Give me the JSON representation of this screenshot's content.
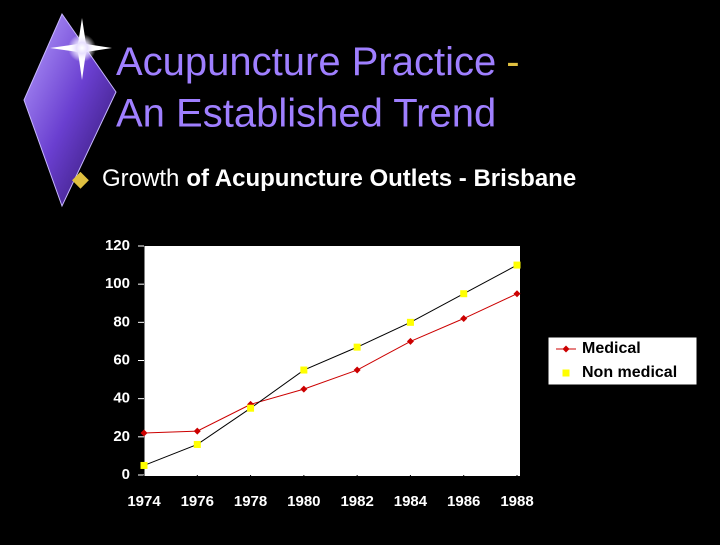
{
  "slide": {
    "title_lines": [
      "Acupuncture Practice",
      "-",
      "An Established Trend"
    ],
    "bullet": [
      "Growth",
      "of Acupuncture Outlets - Brisbane"
    ]
  },
  "chart_data": {
    "type": "line",
    "x": [
      1974,
      1976,
      1978,
      1980,
      1982,
      1984,
      1986,
      1988
    ],
    "xlim": [
      1974,
      1988
    ],
    "xticks": [
      1974,
      1976,
      1978,
      1980,
      1982,
      1984,
      1986,
      1988
    ],
    "ylim": [
      0,
      120
    ],
    "yticks": [
      0,
      20,
      40,
      60,
      80,
      100,
      120
    ],
    "grid": false,
    "legend": "right",
    "series": [
      {
        "name": "Medical",
        "color": "#cc0000",
        "line_color": "#cc0000",
        "marker": "diamond",
        "values": [
          22,
          23,
          37,
          45,
          55,
          70,
          82,
          95
        ]
      },
      {
        "name": "Non medical",
        "color": "#ffff00",
        "line_color": "#000000",
        "marker": "square",
        "values": [
          5,
          16,
          35,
          55,
          67,
          80,
          95,
          110
        ]
      }
    ]
  }
}
